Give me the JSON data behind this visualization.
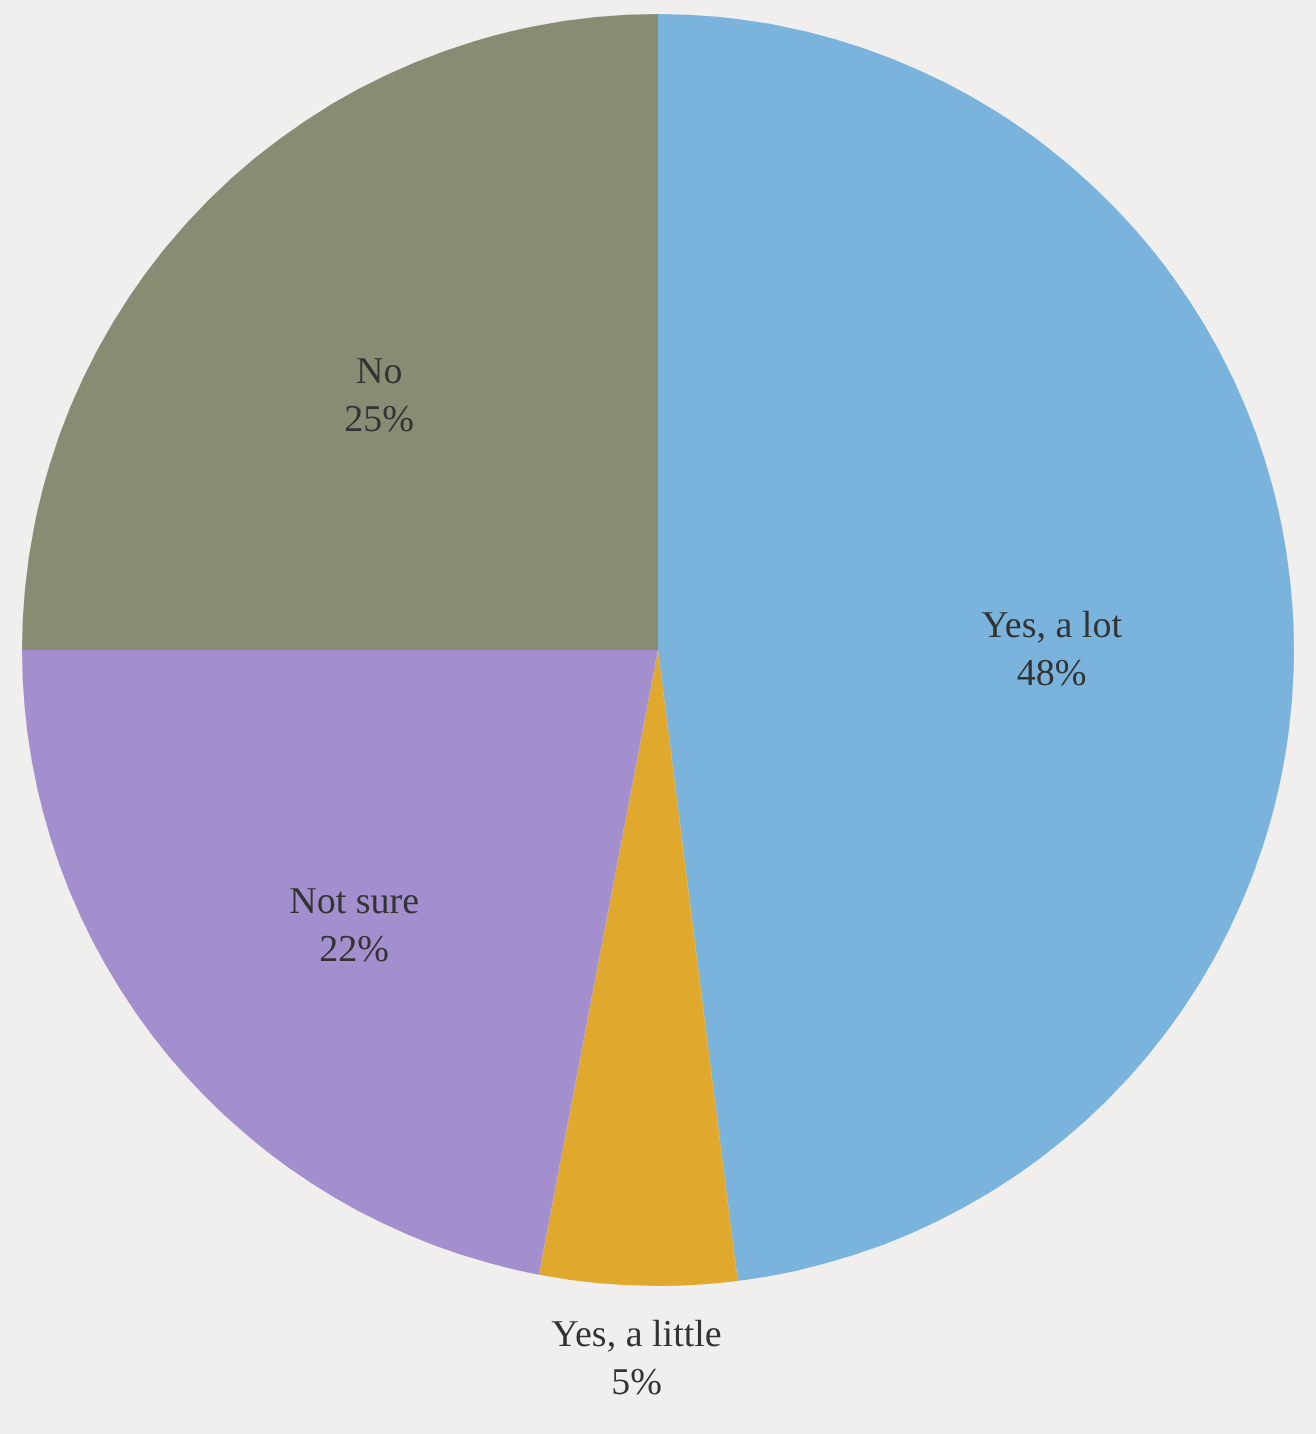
{
  "chart_data": {
    "type": "pie",
    "categories": [
      "Yes, a lot",
      "Yes, a little",
      "Not sure",
      "No"
    ],
    "values": [
      48,
      5,
      22,
      25
    ],
    "value_labels": [
      "48%",
      "5%",
      "22%",
      "25%"
    ],
    "colors": [
      "#7ab3dc",
      "#e0a92e",
      "#a48fce",
      "#878c73"
    ]
  }
}
